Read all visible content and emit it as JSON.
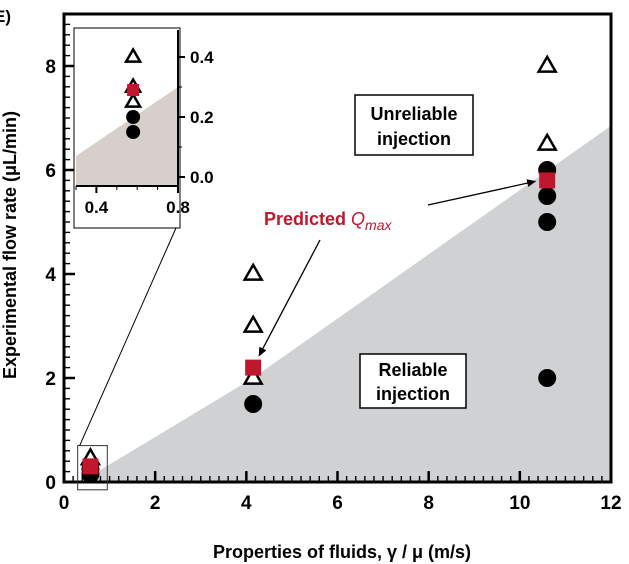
{
  "panel_label": "E)",
  "chart_data": {
    "type": "scatter",
    "title": "",
    "xlabel": "Properties of fluids, γ / μ (m/s)",
    "ylabel": "Experimental flow rate (μL/min)",
    "xlim": [
      0,
      12
    ],
    "ylim": [
      0,
      9
    ],
    "x_ticks": [
      "0",
      "2",
      "4",
      "6",
      "8",
      "10",
      "12"
    ],
    "y_ticks": [
      "0",
      "2",
      "4",
      "6",
      "8"
    ],
    "grid": false,
    "reliable_boundary": [
      [
        0.55,
        0.1
      ],
      [
        4.15,
        2.0
      ],
      [
        12,
        6.85
      ]
    ],
    "series": [
      {
        "marker": "open-triangle",
        "points": [
          [
            0.58,
            0.45
          ],
          [
            4.15,
            4.0
          ],
          [
            4.15,
            3.0
          ],
          [
            4.15,
            2.0
          ],
          [
            10.6,
            8.0
          ],
          [
            10.6,
            6.5
          ]
        ]
      },
      {
        "marker": "filled-circle",
        "points": [
          [
            0.58,
            0.25
          ],
          [
            0.58,
            0.15
          ],
          [
            4.15,
            1.5
          ],
          [
            10.6,
            6.0
          ],
          [
            10.6,
            5.5
          ],
          [
            10.6,
            5.0
          ],
          [
            10.6,
            2.0
          ]
        ]
      },
      {
        "marker": "red-square",
        "points": [
          [
            0.58,
            0.3
          ],
          [
            4.15,
            2.2
          ],
          [
            10.6,
            5.8
          ]
        ]
      }
    ],
    "annotations": {
      "unreliable": [
        "Unreliable",
        "injection"
      ],
      "reliable": [
        "Reliable",
        "injection"
      ],
      "predicted_prefix": "Predicted ",
      "predicted_symbol": "Q",
      "predicted_subscript": "max"
    },
    "inset": {
      "xlim": [
        0.3,
        0.8
      ],
      "ylim": [
        -0.03,
        0.49
      ],
      "x_ticks": [
        "0.4",
        "0.8"
      ],
      "y_ticks": [
        "0.0",
        "0.2",
        "0.4"
      ],
      "boundary": [
        [
          0.3,
          0.07
        ],
        [
          0.8,
          0.3
        ]
      ],
      "triangles": [
        [
          0.58,
          0.4
        ],
        [
          0.58,
          0.3
        ],
        [
          0.58,
          0.25
        ]
      ],
      "circles": [
        [
          0.58,
          0.2
        ],
        [
          0.58,
          0.15
        ]
      ],
      "squares": [
        [
          0.58,
          0.29
        ]
      ]
    },
    "colors": {
      "region": "#cfd1d3",
      "accent": "#c0172c",
      "inset_region": "#d7cfcb"
    }
  }
}
